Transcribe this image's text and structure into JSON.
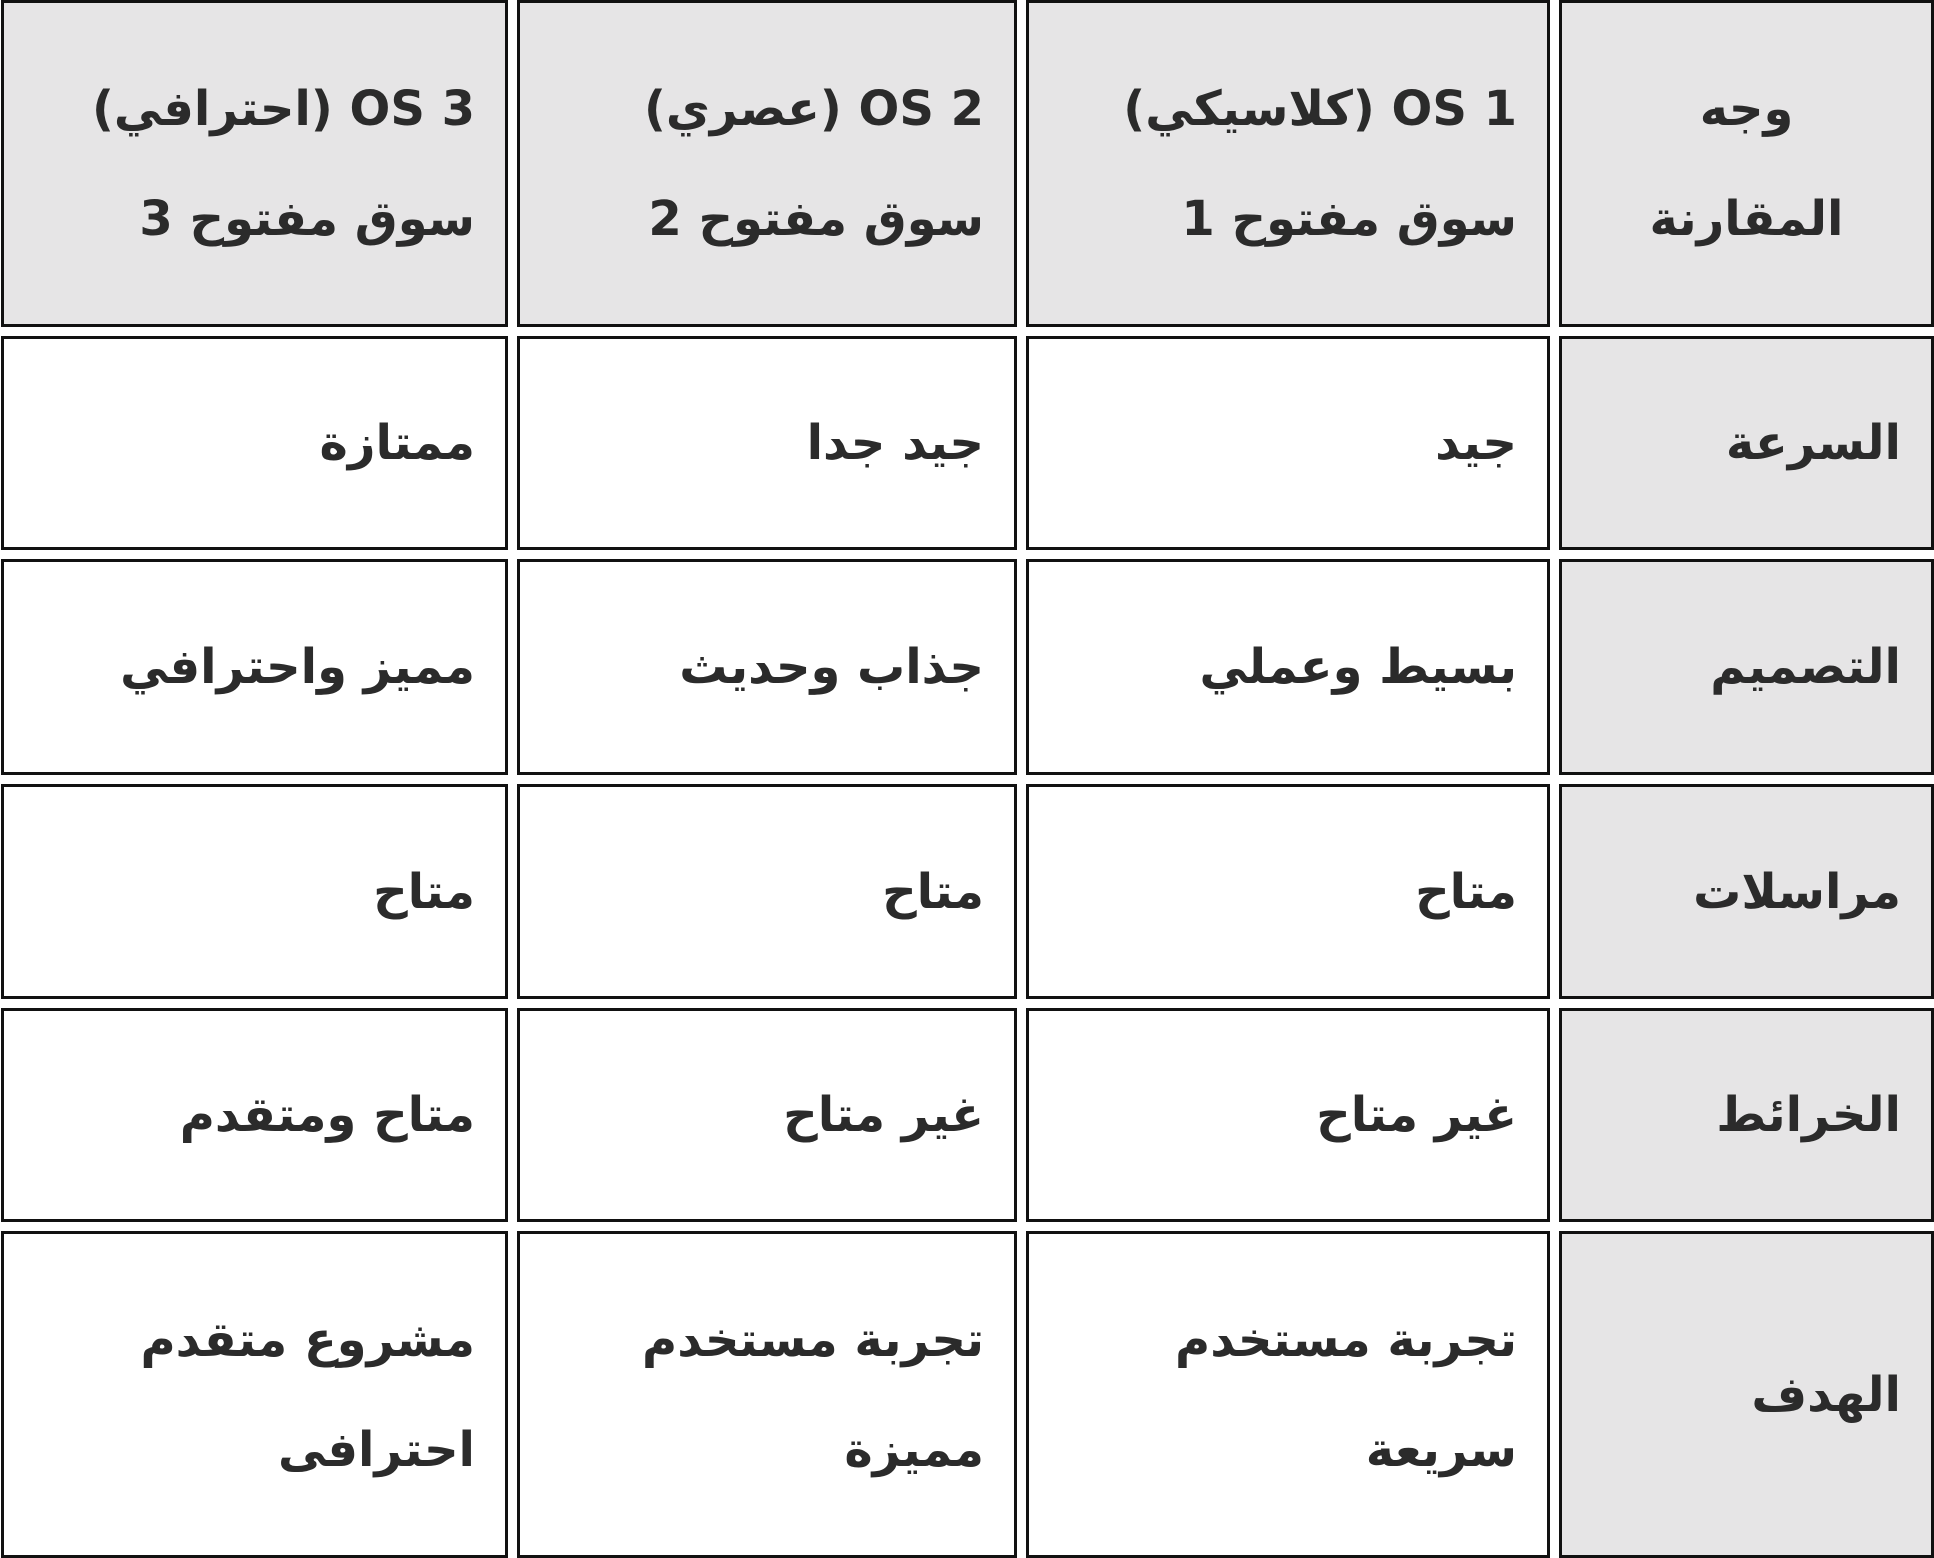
{
  "header": {
    "aspect": [
      "وجه",
      "المقارنة"
    ],
    "columns": [
      {
        "title": "OS 1 (كلاسيكي)",
        "subtitle": "سوق مفتوح 1"
      },
      {
        "title": "OS 2 (عصري)",
        "subtitle": "سوق مفتوح 2"
      },
      {
        "title": "OS 3 (احترافي)",
        "subtitle": "سوق مفتوح 3"
      }
    ]
  },
  "rows": [
    {
      "aspect": "السرعة",
      "values": [
        [
          "جيد"
        ],
        [
          "جيد جدا"
        ],
        [
          "ممتازة"
        ]
      ]
    },
    {
      "aspect": "التصميم",
      "values": [
        [
          "بسيط وعملي"
        ],
        [
          "جذاب وحديث"
        ],
        [
          "مميز واحترافي"
        ]
      ]
    },
    {
      "aspect": "مراسلات",
      "values": [
        [
          "متاح"
        ],
        [
          "متاح"
        ],
        [
          "متاح"
        ]
      ]
    },
    {
      "aspect": "الخرائط",
      "values": [
        [
          "غير متاح"
        ],
        [
          "غير متاح"
        ],
        [
          "متاح ومتقدم"
        ]
      ]
    },
    {
      "aspect": "الهدف",
      "values": [
        [
          "تجربة مستخدم",
          "سريعة"
        ],
        [
          "تجربة مستخدم",
          "مميزة"
        ],
        [
          "مشروع متقدم",
          "احترافى"
        ]
      ]
    }
  ],
  "colors": {
    "header_bg": "#e6e5e6",
    "border": "#111111",
    "text": "#2b2b2b"
  }
}
